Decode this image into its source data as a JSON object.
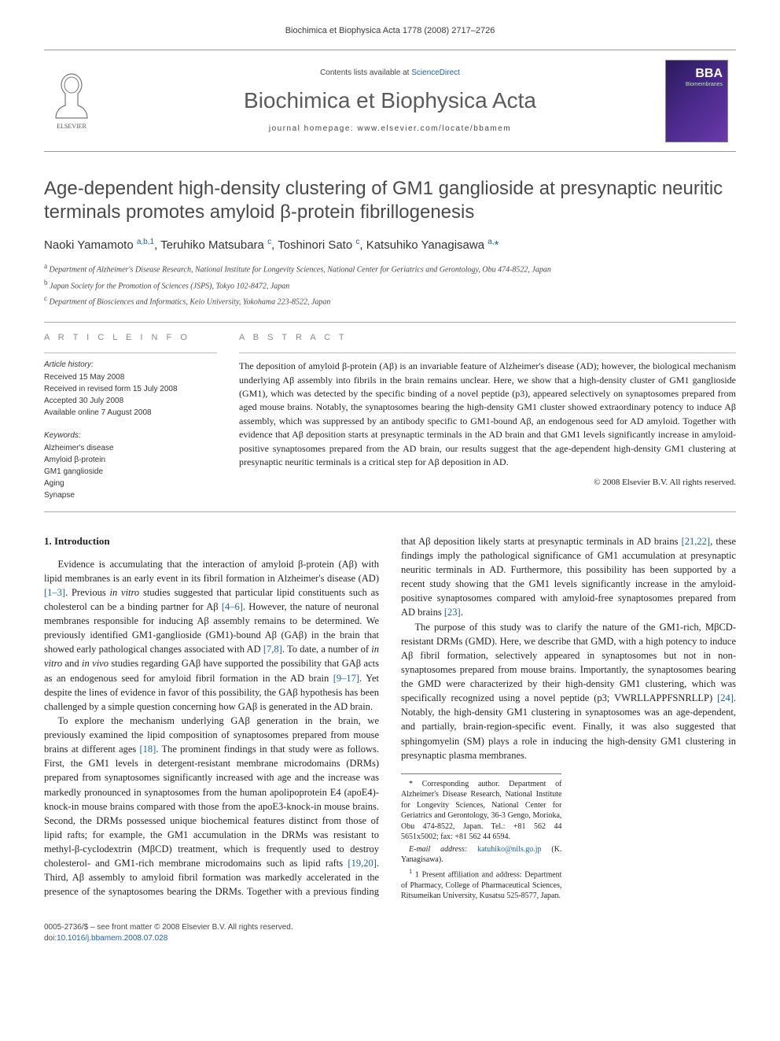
{
  "running_head": "Biochimica et Biophysica Acta 1778 (2008) 2717–2726",
  "masthead": {
    "contents_prefix": "Contents lists available at ",
    "contents_link": "ScienceDirect",
    "journal_title": "Biochimica et Biophysica Acta",
    "homepage_prefix": "journal homepage: ",
    "homepage_url": "www.elsevier.com/locate/bbamem",
    "cover_bba": "BBA",
    "cover_sub": "Biomembranes"
  },
  "article": {
    "title": "Age-dependent high-density clustering of GM1 ganglioside at presynaptic neuritic terminals promotes amyloid β-protein fibrillogenesis",
    "authors_html": "Naoki Yamamoto <sup>a,b,1</sup>, Teruhiko Matsubara <sup>c</sup>, Toshinori Sato <sup>c</sup>, Katsuhiko Yanagisawa <sup>a,</sup><span class='star'>*</span>",
    "affiliations": [
      "a Department of Alzheimer's Disease Research, National Institute for Longevity Sciences, National Center for Geriatrics and Gerontology, Obu 474-8522, Japan",
      "b Japan Society for the Promotion of Sciences (JSPS), Tokyo 102-8472, Japan",
      "c Department of Biosciences and Informatics, Keio University, Yokohama 223-8522, Japan"
    ]
  },
  "info": {
    "section_label": "A R T I C L E   I N F O",
    "history_head": "Article history:",
    "history": [
      "Received 15 May 2008",
      "Received in revised form 15 July 2008",
      "Accepted 30 July 2008",
      "Available online 7 August 2008"
    ],
    "keywords_head": "Keywords:",
    "keywords": [
      "Alzheimer's disease",
      "Amyloid β-protein",
      "GM1 ganglioside",
      "Aging",
      "Synapse"
    ]
  },
  "abstract": {
    "section_label": "A B S T R A C T",
    "text": "The deposition of amyloid β-protein (Aβ) is an invariable feature of Alzheimer's disease (AD); however, the biological mechanism underlying Aβ assembly into fibrils in the brain remains unclear. Here, we show that a high-density cluster of GM1 ganglioside (GM1), which was detected by the specific binding of a novel peptide (p3), appeared selectively on synaptosomes prepared from aged mouse brains. Notably, the synaptosomes bearing the high-density GM1 cluster showed extraordinary potency to induce Aβ assembly, which was suppressed by an antibody specific to GM1-bound Aβ, an endogenous seed for AD amyloid. Together with evidence that Aβ deposition starts at presynaptic terminals in the AD brain and that GM1 levels significantly increase in amyloid-positive synaptosomes prepared from the AD brain, our results suggest that the age-dependent high-density GM1 clustering at presynaptic neuritic terminals is a critical step for Aβ deposition in AD.",
    "copyright": "© 2008 Elsevier B.V. All rights reserved."
  },
  "body": {
    "heading": "1. Introduction",
    "p1": "Evidence is accumulating that the interaction of amyloid β-protein (Aβ) with lipid membranes is an early event in its fibril formation in Alzheimer's disease (AD) [1–3]. Previous in vitro studies suggested that particular lipid constituents such as cholesterol can be a binding partner for Aβ [4–6]. However, the nature of neuronal membranes responsible for inducing Aβ assembly remains to be determined. We previously identified GM1-ganglioside (GM1)-bound Aβ (GAβ) in the brain that showed early pathological changes associated with AD [7,8]. To date, a number of in vitro and in vivo studies regarding GAβ have supported the possibility that GAβ acts as an endogenous seed for amyloid fibril formation in the AD brain [9–17]. Yet despite the lines of evidence in favor of this possibility, the GAβ hypothesis has been challenged by a simple question concerning how GAβ is generated in the AD brain.",
    "p2": "To explore the mechanism underlying GAβ generation in the brain, we previously examined the lipid composition of synaptosomes prepared from mouse brains at different ages [18]. The prominent findings in that study were as follows. First, the GM1 levels in detergent-resistant membrane microdomains (DRMs) prepared from synaptosomes significantly increased with age and the increase was markedly pronounced in synaptosomes from the human apolipoprotein E4 (apoE4)-knock-in mouse brains compared with those from the apoE3-knock-in mouse brains. Second, the DRMs possessed unique biochemical features distinct from those of lipid rafts; for example, the GM1 accumulation in the DRMs was resistant to methyl-β-cyclodextrin (MβCD) treatment, which is frequently used to destroy cholesterol- and GM1-rich membrane microdomains such as lipid rafts [19,20]. Third, Aβ assembly to amyloid fibril formation was markedly accelerated in the presence of the synaptosomes bearing the DRMs. Together with a previous finding that Aβ deposition likely starts at presynaptic terminals in AD brains [21,22], these findings imply the pathological significance of GM1 accumulation at presynaptic neuritic terminals in AD. Furthermore, this possibility has been supported by a recent study showing that the GM1 levels significantly increase in the amyloid-positive synaptosomes compared with amyloid-free synaptosomes prepared from AD brains [23].",
    "p3": "The purpose of this study was to clarify the nature of the GM1-rich, MβCD-resistant DRMs (GMD). Here, we describe that GMD, with a high potency to induce Aβ fibril formation, selectively appeared in synaptosomes but not in non-synaptosomes prepared from mouse brains. Importantly, the synaptosomes bearing the GMD were characterized by their high-density GM1 clustering, which was specifically recognized using a novel peptide (p3; VWRLLAPPFSNRLLP) [24]. Notably, the high-density GM1 clustering in synaptosomes was an age-dependent, and partially, brain-region-specific event. Finally, it was also suggested that sphingomyelin (SM) plays a role in inducing the high-density GM1 clustering in presynaptic plasma membranes."
  },
  "footnotes": {
    "corr": "* Corresponding author. Department of Alzheimer's Disease Research, National Institute for Longevity Sciences, National Center for Geriatrics and Gerontology, 36-3 Gengo, Morioka, Obu 474-8522, Japan. Tel.: +81 562 44 5651x5002; fax: +81 562 44 6594.",
    "email_label": "E-mail address: ",
    "email": "katuhiko@nils.go.jp",
    "email_suffix": " (K. Yanagisawa).",
    "note1": "1 Present affiliation and address: Department of Pharmacy, College of Pharmaceutical Sciences, Ritsumeikan University, Kusatsu 525-8577, Japan."
  },
  "bottom": {
    "line1": "0005-2736/$ – see front matter © 2008 Elsevier B.V. All rights reserved.",
    "doi_prefix": "doi:",
    "doi": "10.1016/j.bbamem.2008.07.028"
  },
  "refs": {
    "r1_3": "[1–3]",
    "r4_6": "[4–6]",
    "r7_8": "[7,8]",
    "r9_17": "[9–17]",
    "r18": "[18]",
    "r19_20": "[19,20]",
    "r21_22": "[21,22]",
    "r23": "[23]",
    "r24": "[24]"
  }
}
